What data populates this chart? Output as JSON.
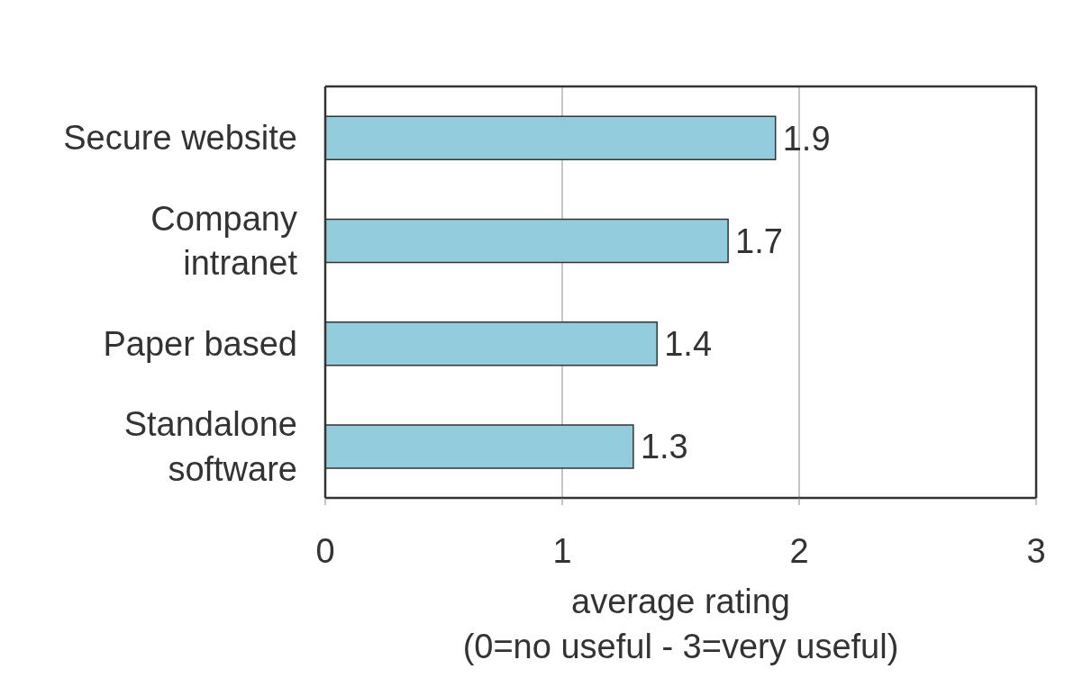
{
  "chart_data": {
    "type": "bar",
    "orientation": "horizontal",
    "categories": [
      "Secure website",
      "Company intranet",
      "Paper based",
      "Standalone software"
    ],
    "values": [
      1.9,
      1.7,
      1.4,
      1.3
    ],
    "color": "#93cddd",
    "xlabel": "average rating\n(0=no useful - 3=very useful)",
    "xlim": [
      0,
      3
    ],
    "xticks": [
      0,
      1,
      2,
      3
    ],
    "grid": "x",
    "data_labels": true
  }
}
